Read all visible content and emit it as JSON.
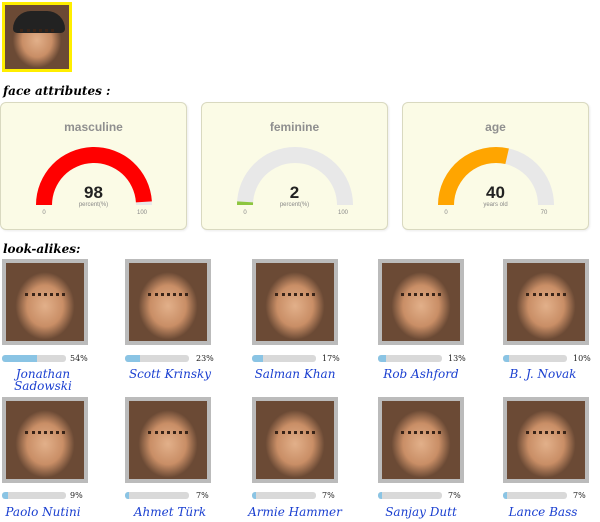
{
  "main_photo": {
    "icon": "person-photo"
  },
  "sections": {
    "face_attributes": "face attributes :",
    "look_alikes": "look-alikes:"
  },
  "gauges": [
    {
      "title": "masculine",
      "value": 98,
      "min": 0,
      "max": 100,
      "unit": "percent(%)",
      "color": "#ff0000"
    },
    {
      "title": "feminine",
      "value": 2,
      "min": 0,
      "max": 100,
      "unit": "percent(%)",
      "color": "#8dc63f"
    },
    {
      "title": "age",
      "value": 40,
      "min": 0,
      "max": 70,
      "unit": "years old",
      "color": "#ffa500"
    }
  ],
  "look_alikes": [
    {
      "name": "Jonathan Sadowski",
      "percent": 54,
      "percent_label": "54%"
    },
    {
      "name": "Scott Krinsky",
      "percent": 23,
      "percent_label": "23%"
    },
    {
      "name": "Salman Khan",
      "percent": 17,
      "percent_label": "17%"
    },
    {
      "name": "Rob Ashford",
      "percent": 13,
      "percent_label": "13%"
    },
    {
      "name": "B. J. Novak",
      "percent": 10,
      "percent_label": "10%"
    },
    {
      "name": "Paolo Nutini",
      "percent": 9,
      "percent_label": "9%"
    },
    {
      "name": "Ahmet Türk",
      "percent": 7,
      "percent_label": "7%"
    },
    {
      "name": "Armie Hammer",
      "percent": 7,
      "percent_label": "7%"
    },
    {
      "name": "Sanjay Dutt",
      "percent": 7,
      "percent_label": "7%"
    },
    {
      "name": "Lance Bass",
      "percent": 7,
      "percent_label": "7%"
    }
  ],
  "colors": {
    "bar_fill": "#8ac4e4",
    "bar_track": "#d9d9d9",
    "name_link": "#1a3fd0",
    "gauge_track": "#e8e8e8",
    "photo_border": "#ffee00"
  }
}
